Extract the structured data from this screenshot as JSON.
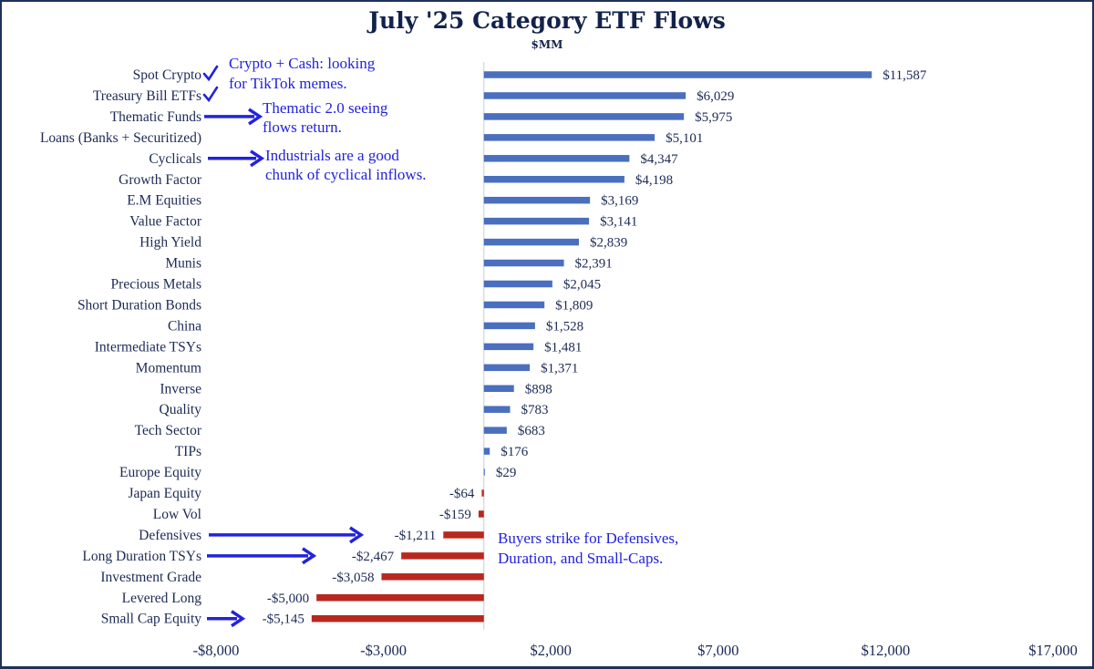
{
  "chart_data": {
    "type": "bar",
    "orientation": "horizontal",
    "title": "July '25 Category ETF Flows",
    "subtitle": "$MM",
    "xlabel": "",
    "ylabel": "",
    "xlim": [
      -8000,
      17000
    ],
    "x_ticks": [
      -8000,
      -3000,
      2000,
      7000,
      12000,
      17000
    ],
    "x_tick_labels": [
      "-$8,000",
      "-$3,000",
      "$2,000",
      "$7,000",
      "$12,000",
      "$17,000"
    ],
    "grid": false,
    "colors": {
      "positive": "#4a6fbf",
      "negative": "#b8281f",
      "annotation": "#2222dd",
      "text": "#1b2a55"
    },
    "categories": [
      "Spot Crypto",
      "Treasury Bill ETFs",
      "Thematic Funds",
      "Loans (Banks + Securitized)",
      "Cyclicals",
      "Growth Factor",
      "E.M Equities",
      "Value Factor",
      "High Yield",
      "Munis",
      "Precious Metals",
      "Short Duration Bonds",
      "China",
      "Intermediate TSYs",
      "Momentum",
      "Inverse",
      "Quality",
      "Tech Sector",
      "TIPs",
      "Europe Equity",
      "Japan Equity",
      "Low Vol",
      "Defensives",
      "Long Duration TSYs",
      "Investment Grade",
      "Levered Long",
      "Small Cap Equity"
    ],
    "values": [
      11587,
      6029,
      5975,
      5101,
      4347,
      4198,
      3169,
      3141,
      2839,
      2391,
      2045,
      1809,
      1528,
      1481,
      1371,
      898,
      783,
      683,
      176,
      29,
      -64,
      -159,
      -1211,
      -2467,
      -3058,
      -5000,
      -5145
    ],
    "data_labels": [
      "$11,587",
      "$6,029",
      "$5,975",
      "$5,101",
      "$4,347",
      "$4,198",
      "$3,169",
      "$3,141",
      "$2,839",
      "$2,391",
      "$2,045",
      "$1,809",
      "$1,528",
      "$1,481",
      "$1,371",
      "$898",
      "$783",
      "$683",
      "$176",
      "$29",
      "-$64",
      "-$159",
      "-$1,211",
      "-$2,467",
      "-$3,058",
      "-$5,000",
      "-$5,145"
    ],
    "annotations": [
      {
        "target": "Spot Crypto",
        "marker": "checkmark",
        "lines": [
          "Crypto + Cash: looking",
          "for TikTok memes."
        ]
      },
      {
        "target": "Treasury Bill ETFs",
        "marker": "checkmark",
        "lines": []
      },
      {
        "target": "Thematic Funds",
        "marker": "arrow",
        "lines": [
          "Thematic 2.0 seeing",
          "flows return."
        ]
      },
      {
        "target": "Cyclicals",
        "marker": "arrow",
        "lines": [
          "Industrials are a good",
          "chunk of cyclical inflows."
        ]
      },
      {
        "target": "Defensives",
        "marker": "arrow",
        "lines": [
          "Buyers strike for Defensives,",
          "Duration, and Small-Caps."
        ]
      },
      {
        "target": "Long Duration TSYs",
        "marker": "arrow",
        "lines": []
      },
      {
        "target": "Small Cap Equity",
        "marker": "arrow",
        "lines": []
      }
    ]
  }
}
